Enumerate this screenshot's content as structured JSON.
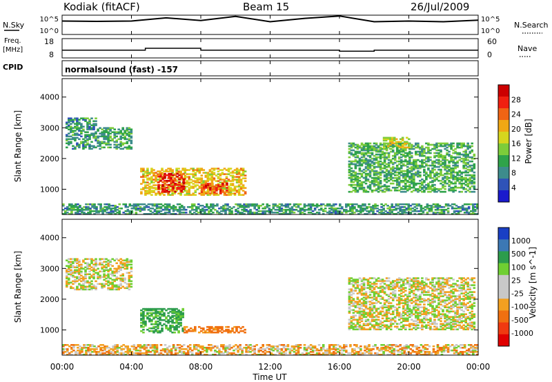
{
  "header": {
    "station": "Kodiak (fitACF)",
    "beam": "Beam 15",
    "date": "26/Jul/2009"
  },
  "strip_labels": {
    "nsky": "N.Sky",
    "nsky_ticks": [
      "10^5",
      "10^0"
    ],
    "nsearch": "N.Search",
    "freq_line1": "Freq.",
    "freq_line2": "[MHz]",
    "freq_ticks": [
      "18",
      "8"
    ],
    "nave": "Nave",
    "nave_ticks": [
      "60",
      "0"
    ],
    "cpid": "CPID",
    "cpid_value": "normalsound (fast) -157"
  },
  "colors": {
    "power_scale": [
      "#1a1acc",
      "#2f53b8",
      "#3d8c8c",
      "#2fa34a",
      "#7dcc3a",
      "#d6d61e",
      "#f0a814",
      "#f06414",
      "#f02010",
      "#cc0000"
    ],
    "velocity_scale": [
      "#1a3fc4",
      "#3c78b4",
      "#2c9c4c",
      "#6fcf32",
      "#c8c8c8",
      "#c8c8c8",
      "#f2a020",
      "#f07010",
      "#f03a10",
      "#e00000"
    ],
    "ground_scatter": "#b4b4b4"
  },
  "chart_data": [
    {
      "type": "line",
      "title": "N.Sky / N.Search",
      "y_scale": "log",
      "ylim": [
        1,
        100000
      ],
      "y_ticks": [
        "10^0",
        "10^5"
      ],
      "series": [
        {
          "name": "N.Sky",
          "x_hours": [
            0,
            2,
            4,
            6,
            8,
            10,
            12,
            14,
            16,
            18,
            20,
            22,
            24
          ],
          "values": [
            3000,
            2500,
            3000,
            20000,
            4000,
            50000,
            2000,
            15000,
            60000,
            2000,
            3000,
            2000,
            5000
          ]
        }
      ]
    },
    {
      "type": "line",
      "title": "Freq. [MHz] / Nave",
      "ylim": [
        8,
        18
      ],
      "y_ticks": [
        "18",
        "8"
      ],
      "right_ylim": [
        0,
        60
      ],
      "right_y_ticks": [
        "60",
        "0"
      ],
      "series": [
        {
          "name": "Freq.",
          "x_hours": [
            0,
            4.3,
            4.8,
            8,
            12,
            16,
            18,
            24
          ],
          "values": [
            12,
            12,
            13,
            12,
            12,
            11.5,
            12,
            12
          ]
        }
      ]
    },
    {
      "type": "heatmap",
      "xlabel": "",
      "ylabel": "Slant Range [km]",
      "xlim": [
        0,
        24
      ],
      "ylim": [
        180,
        4600
      ],
      "y_ticks": [
        1000,
        2000,
        3000,
        4000
      ],
      "colorbar_label": "Power [dB]",
      "colorbar_ticks": [
        4,
        8,
        12,
        16,
        20,
        24,
        28
      ],
      "colorbar_range": [
        0,
        30
      ],
      "regions": [
        {
          "t0": 0.2,
          "t1": 2.0,
          "r0": 2300,
          "r1": 3300,
          "level": 9
        },
        {
          "t0": 2.0,
          "t1": 4.0,
          "r0": 2300,
          "r1": 3000,
          "level": 10
        },
        {
          "t0": 4.5,
          "t1": 10.5,
          "r0": 800,
          "r1": 1700,
          "level": 18
        },
        {
          "t0": 5.5,
          "t1": 7.0,
          "r0": 900,
          "r1": 1500,
          "level": 27
        },
        {
          "t0": 8.0,
          "t1": 9.5,
          "r0": 850,
          "r1": 1200,
          "level": 24
        },
        {
          "t0": 16.5,
          "t1": 23.8,
          "r0": 900,
          "r1": 2500,
          "level": 11
        },
        {
          "t0": 18.5,
          "t1": 20.0,
          "r0": 2300,
          "r1": 2700,
          "level": 16
        },
        {
          "t0": 0,
          "t1": 24,
          "r0": 180,
          "r1": 500,
          "level": 9
        }
      ]
    },
    {
      "type": "heatmap",
      "xlabel": "Time UT",
      "ylabel": "Slant Range [km]",
      "xlim": [
        0,
        24
      ],
      "x_ticks": [
        "00:00",
        "04:00",
        "08:00",
        "12:00",
        "16:00",
        "20:00",
        "00:00"
      ],
      "ylim": [
        180,
        4600
      ],
      "y_ticks": [
        1000,
        2000,
        3000,
        4000
      ],
      "colorbar_label": "Velocity [m s^-1]",
      "colorbar_ticks": [
        1000,
        500,
        100,
        25,
        -25,
        -100,
        -500,
        -1000
      ],
      "regions": [
        {
          "t0": 4.5,
          "t1": 7.0,
          "r0": 900,
          "r1": 1700,
          "velocity": 150
        },
        {
          "t0": 7.0,
          "t1": 10.5,
          "r0": 900,
          "r1": 1100,
          "velocity": -150
        },
        {
          "t0": 0.2,
          "t1": 4.0,
          "r0": 2300,
          "r1": 3300,
          "velocity": 0
        },
        {
          "t0": 16.5,
          "t1": 23.8,
          "r0": 1000,
          "r1": 2700,
          "velocity": 0
        },
        {
          "t0": 0,
          "t1": 24,
          "r0": 180,
          "r1": 500,
          "velocity": -50
        }
      ]
    }
  ],
  "axes": {
    "x_ticks": [
      "00:00",
      "04:00",
      "08:00",
      "12:00",
      "16:00",
      "20:00",
      "00:00"
    ],
    "x_label": "Time UT",
    "y_label": "Slant Range [km]",
    "y_ticks": [
      "1000",
      "2000",
      "3000",
      "4000"
    ],
    "power_label": "Power [dB]",
    "power_ticks": [
      "4",
      "8",
      "12",
      "16",
      "20",
      "24",
      "28"
    ],
    "velocity_label": "Velocity [m s^-1]",
    "velocity_ticks": [
      "1000",
      "500",
      "100",
      "25",
      "-25",
      "-100",
      "-500",
      "-1000"
    ]
  }
}
